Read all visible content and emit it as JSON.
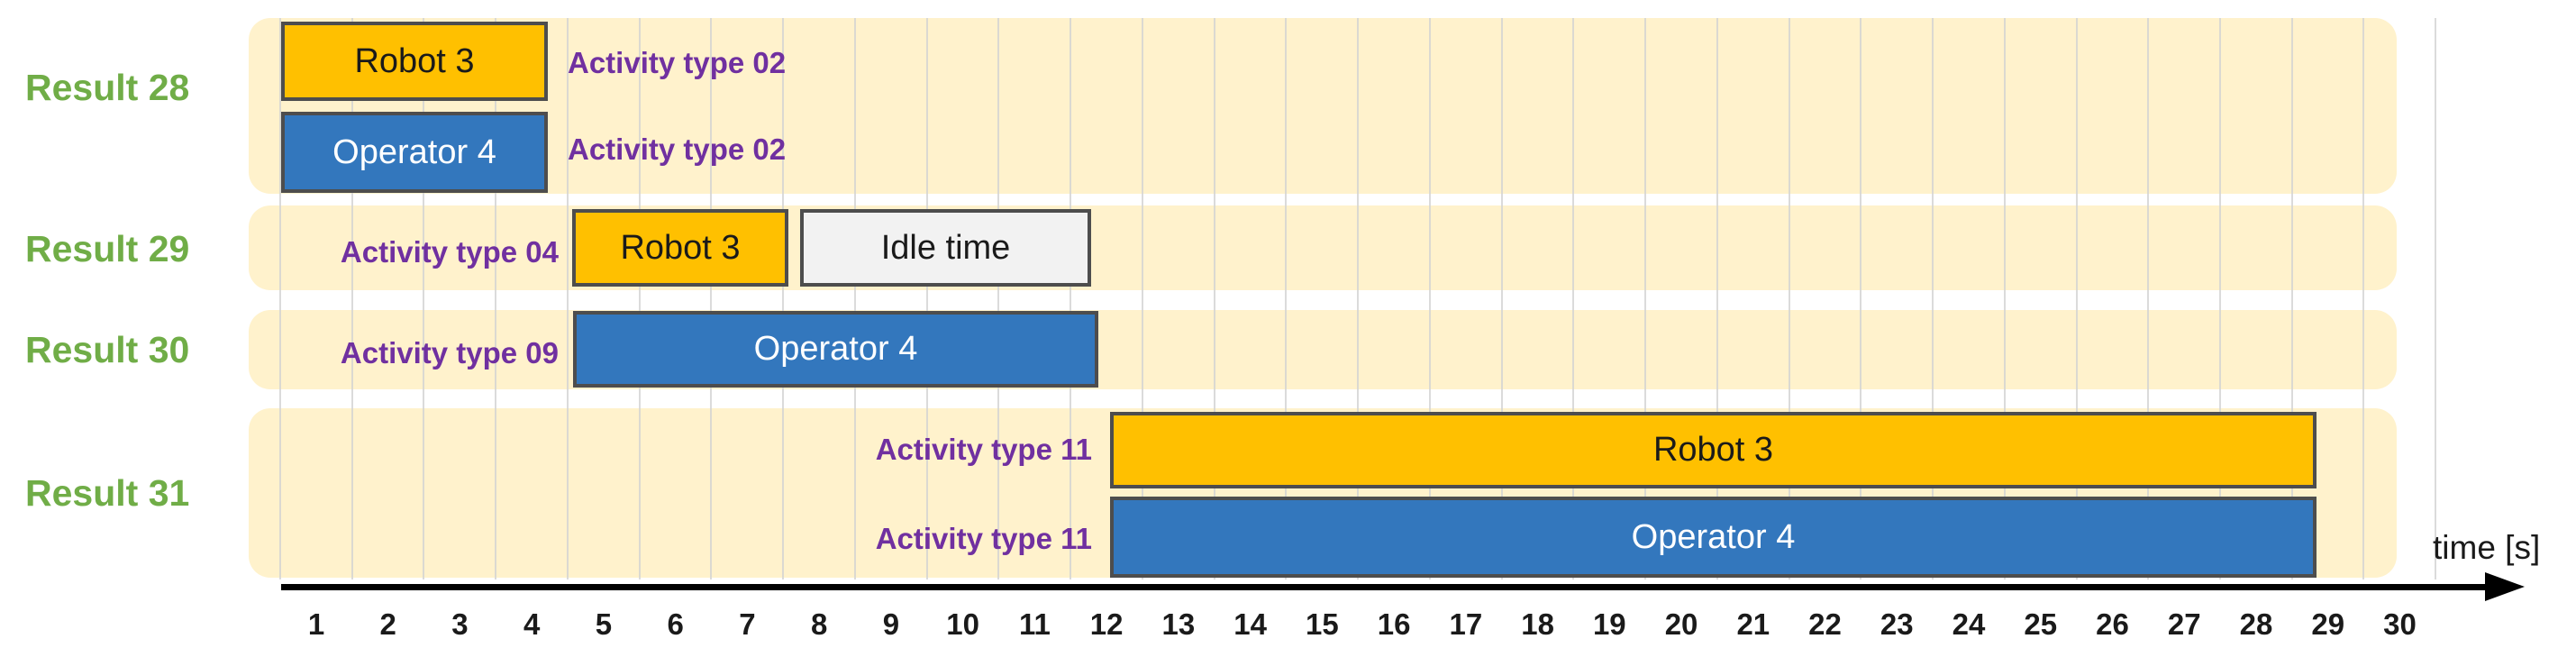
{
  "colors": {
    "robot": "#FFC000",
    "operator": "#3377BD",
    "idle": "#F2F2F2",
    "band": "#FFF2CC",
    "grid": "#D2D2D2",
    "rowlabel": "#70AD47",
    "activity": "#7030A0",
    "barborder": "#4D4D4D"
  },
  "rows": [
    {
      "label": "Result 28",
      "bars": [
        {
          "label": "Robot 3",
          "activity": "Activity type 02"
        },
        {
          "label": "Operator 4",
          "activity": "Activity type 02"
        }
      ]
    },
    {
      "label": "Result 29",
      "bars": [
        {
          "label": "Robot 3",
          "activity": "Activity type 04"
        },
        {
          "label": "Idle time"
        }
      ]
    },
    {
      "label": "Result 30",
      "bars": [
        {
          "label": "Operator 4",
          "activity": "Activity type 09"
        }
      ]
    },
    {
      "label": "Result 31",
      "bars": [
        {
          "label": "Robot 3",
          "activity": "Activity type 11"
        },
        {
          "label": "Operator 4",
          "activity": "Activity type 11"
        }
      ]
    }
  ],
  "axis": {
    "label": "time [s]",
    "ticks": [
      "1",
      "2",
      "3",
      "4",
      "5",
      "6",
      "7",
      "8",
      "9",
      "10",
      "11",
      "12",
      "13",
      "14",
      "15",
      "16",
      "17",
      "18",
      "19",
      "20",
      "21",
      "22",
      "23",
      "24",
      "25",
      "26",
      "27",
      "28",
      "29",
      "30"
    ]
  },
  "chart_data": {
    "type": "gantt",
    "xlabel": "time [s]",
    "x_range": [
      0,
      30
    ],
    "x_ticks": [
      1,
      2,
      3,
      4,
      5,
      6,
      7,
      8,
      9,
      10,
      11,
      12,
      13,
      14,
      15,
      16,
      17,
      18,
      19,
      20,
      21,
      22,
      23,
      24,
      25,
      26,
      27,
      28,
      29,
      30
    ],
    "grid": true,
    "rows": [
      {
        "row": "Result 28",
        "entries": [
          {
            "resource": "Robot 3",
            "activity": "Activity type 02",
            "start": 0.0,
            "end": 3.7
          },
          {
            "resource": "Operator 4",
            "activity": "Activity type 02",
            "start": 0.0,
            "end": 3.7
          }
        ]
      },
      {
        "row": "Result 29",
        "entries": [
          {
            "resource": "Robot 3",
            "activity": "Activity type 04",
            "start": 4.1,
            "end": 7.1
          },
          {
            "resource": "Idle time",
            "activity": "",
            "start": 7.2,
            "end": 11.3
          }
        ]
      },
      {
        "row": "Result 30",
        "entries": [
          {
            "resource": "Operator 4",
            "activity": "Activity type 09",
            "start": 4.1,
            "end": 11.4
          }
        ]
      },
      {
        "row": "Result 31",
        "entries": [
          {
            "resource": "Robot 3",
            "activity": "Activity type 11",
            "start": 11.6,
            "end": 28.4
          },
          {
            "resource": "Operator 4",
            "activity": "Activity type 11",
            "start": 11.6,
            "end": 28.4
          }
        ]
      }
    ]
  }
}
